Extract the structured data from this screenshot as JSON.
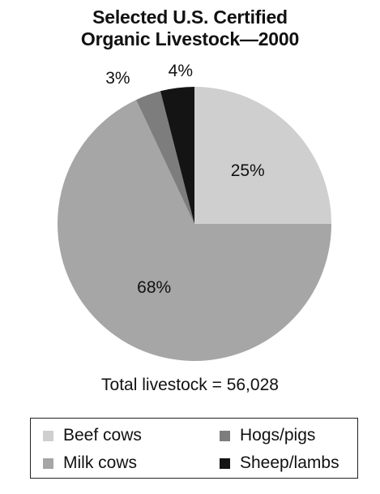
{
  "chart_data": {
    "type": "pie",
    "title": "Selected U.S. Certified Organic Livestock—2000",
    "title_lines": [
      "Selected U.S. Certified",
      "Organic Livestock—2000"
    ],
    "annotation": "Total livestock = 56,028",
    "legend_position": "bottom",
    "slices": [
      {
        "name": "Beef cows",
        "value": 25,
        "label": "25%",
        "color": "#cfcfcf"
      },
      {
        "name": "Milk cows",
        "value": 68,
        "label": "68%",
        "color": "#a6a6a6"
      },
      {
        "name": "Hogs/pigs",
        "value": 3,
        "label": "3%",
        "color": "#7d7d7d"
      },
      {
        "name": "Sheep/lambs",
        "value": 4,
        "label": "4%",
        "color": "#141414"
      }
    ],
    "legend": [
      {
        "name": "Beef cows",
        "color": "#cfcfcf"
      },
      {
        "name": "Hogs/pigs",
        "color": "#7d7d7d"
      },
      {
        "name": "Milk cows",
        "color": "#a6a6a6"
      },
      {
        "name": "Sheep/lambs",
        "color": "#141414"
      }
    ]
  }
}
